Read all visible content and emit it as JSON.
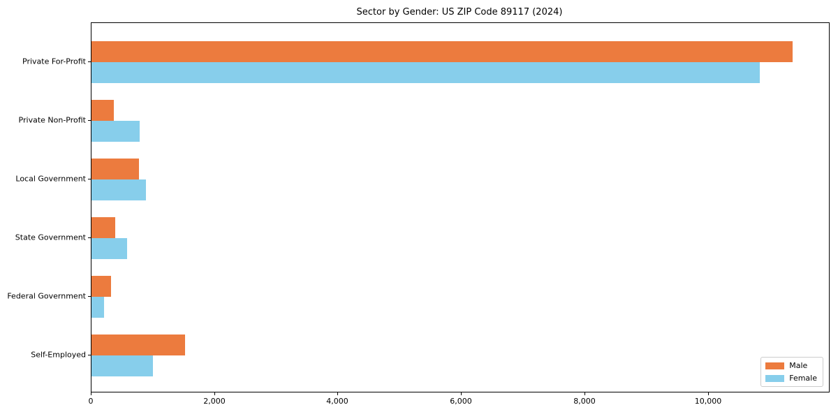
{
  "chart_data": {
    "type": "bar",
    "orientation": "horizontal",
    "title": "Sector by Gender: US ZIP Code 89117 (2024)",
    "categories": [
      "Private For-Profit",
      "Private Non-Profit",
      "Local Government",
      "State Government",
      "Federal Government",
      "Self-Employed"
    ],
    "series": [
      {
        "name": "Male",
        "color": "#EC7B3E",
        "values": [
          11360,
          360,
          770,
          385,
          315,
          1515
        ]
      },
      {
        "name": "Female",
        "color": "#87CEEB",
        "values": [
          10830,
          780,
          880,
          575,
          200,
          995
        ]
      }
    ],
    "xlabel": "",
    "ylabel": "",
    "xlim": [
      0,
      11950
    ],
    "xticks": {
      "values": [
        0,
        2000,
        4000,
        6000,
        8000,
        10000
      ],
      "labels": [
        "0",
        "2,000",
        "4,000",
        "6,000",
        "8,000",
        "10,000"
      ]
    },
    "grid": false,
    "legend": {
      "position": "lower right",
      "entries": [
        "Male",
        "Female"
      ]
    }
  }
}
